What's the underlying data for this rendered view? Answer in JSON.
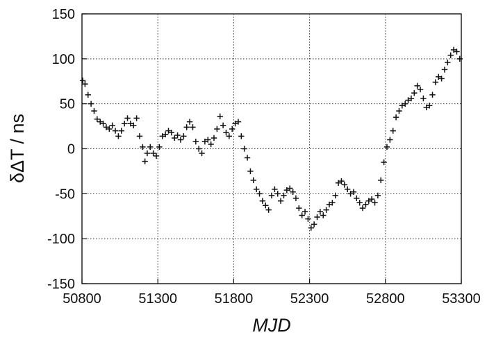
{
  "chart_data": {
    "type": "scatter",
    "title": "",
    "xlabel": "MJD",
    "ylabel": "δΔT / ns",
    "xlim": [
      50800,
      53300
    ],
    "ylim": [
      -150,
      150
    ],
    "xticks": [
      50800,
      51300,
      51800,
      52300,
      52800,
      53300
    ],
    "yticks": [
      -150,
      -100,
      -50,
      0,
      50,
      100,
      150
    ],
    "grid": true,
    "grid_style": "dotted",
    "legend": "none",
    "marker": "+",
    "marker_color": "#111111",
    "series": [
      {
        "points": [
          [
            50805,
            76
          ],
          [
            50820,
            72
          ],
          [
            50840,
            60
          ],
          [
            50860,
            50
          ],
          [
            50880,
            42
          ],
          [
            50900,
            33
          ],
          [
            50920,
            30
          ],
          [
            50940,
            28
          ],
          [
            50960,
            24
          ],
          [
            50980,
            22
          ],
          [
            51000,
            26
          ],
          [
            51020,
            20
          ],
          [
            51040,
            14
          ],
          [
            51060,
            20
          ],
          [
            51080,
            28
          ],
          [
            51100,
            34
          ],
          [
            51120,
            28
          ],
          [
            51140,
            26
          ],
          [
            51160,
            34
          ],
          [
            51180,
            14
          ],
          [
            51200,
            2
          ],
          [
            51215,
            -14
          ],
          [
            51230,
            -5
          ],
          [
            51250,
            2
          ],
          [
            51270,
            -5
          ],
          [
            51290,
            -8
          ],
          [
            51310,
            2
          ],
          [
            51330,
            14
          ],
          [
            51350,
            16
          ],
          [
            51370,
            20
          ],
          [
            51390,
            18
          ],
          [
            51410,
            12
          ],
          [
            51430,
            15
          ],
          [
            51450,
            10
          ],
          [
            51470,
            14
          ],
          [
            51490,
            24
          ],
          [
            51510,
            30
          ],
          [
            51530,
            24
          ],
          [
            51550,
            8
          ],
          [
            51570,
            0
          ],
          [
            51590,
            -5
          ],
          [
            51610,
            8
          ],
          [
            51630,
            10
          ],
          [
            51650,
            5
          ],
          [
            51670,
            12
          ],
          [
            51690,
            22
          ],
          [
            51710,
            36
          ],
          [
            51730,
            26
          ],
          [
            51750,
            18
          ],
          [
            51770,
            14
          ],
          [
            51790,
            22
          ],
          [
            51810,
            28
          ],
          [
            51830,
            30
          ],
          [
            51850,
            14
          ],
          [
            51870,
            0
          ],
          [
            51890,
            -10
          ],
          [
            51910,
            -25
          ],
          [
            51930,
            -35
          ],
          [
            51950,
            -45
          ],
          [
            51970,
            -50
          ],
          [
            51990,
            -58
          ],
          [
            52010,
            -63
          ],
          [
            52030,
            -68
          ],
          [
            52050,
            -52
          ],
          [
            52070,
            -45
          ],
          [
            52090,
            -50
          ],
          [
            52110,
            -58
          ],
          [
            52130,
            -52
          ],
          [
            52150,
            -46
          ],
          [
            52170,
            -44
          ],
          [
            52190,
            -48
          ],
          [
            52210,
            -55
          ],
          [
            52230,
            -66
          ],
          [
            52250,
            -74
          ],
          [
            52270,
            -70
          ],
          [
            52290,
            -78
          ],
          [
            52310,
            -88
          ],
          [
            52330,
            -84
          ],
          [
            52350,
            -76
          ],
          [
            52370,
            -70
          ],
          [
            52390,
            -74
          ],
          [
            52410,
            -68
          ],
          [
            52430,
            -62
          ],
          [
            52450,
            -60
          ],
          [
            52470,
            -52
          ],
          [
            52490,
            -38
          ],
          [
            52510,
            -36
          ],
          [
            52530,
            -40
          ],
          [
            52550,
            -45
          ],
          [
            52570,
            -50
          ],
          [
            52590,
            -48
          ],
          [
            52610,
            -55
          ],
          [
            52630,
            -60
          ],
          [
            52650,
            -66
          ],
          [
            52670,
            -62
          ],
          [
            52690,
            -58
          ],
          [
            52710,
            -56
          ],
          [
            52730,
            -60
          ],
          [
            52750,
            -52
          ],
          [
            52770,
            -35
          ],
          [
            52790,
            -15
          ],
          [
            52810,
            2
          ],
          [
            52830,
            10
          ],
          [
            52850,
            20
          ],
          [
            52870,
            35
          ],
          [
            52890,
            42
          ],
          [
            52910,
            48
          ],
          [
            52930,
            50
          ],
          [
            52950,
            54
          ],
          [
            52970,
            56
          ],
          [
            52990,
            62
          ],
          [
            53010,
            70
          ],
          [
            53030,
            66
          ],
          [
            53050,
            56
          ],
          [
            53070,
            46
          ],
          [
            53090,
            48
          ],
          [
            53110,
            60
          ],
          [
            53130,
            74
          ],
          [
            53150,
            80
          ],
          [
            53170,
            78
          ],
          [
            53190,
            88
          ],
          [
            53210,
            96
          ],
          [
            53230,
            104
          ],
          [
            53250,
            110
          ],
          [
            53270,
            108
          ],
          [
            53290,
            100
          ]
        ]
      }
    ]
  }
}
